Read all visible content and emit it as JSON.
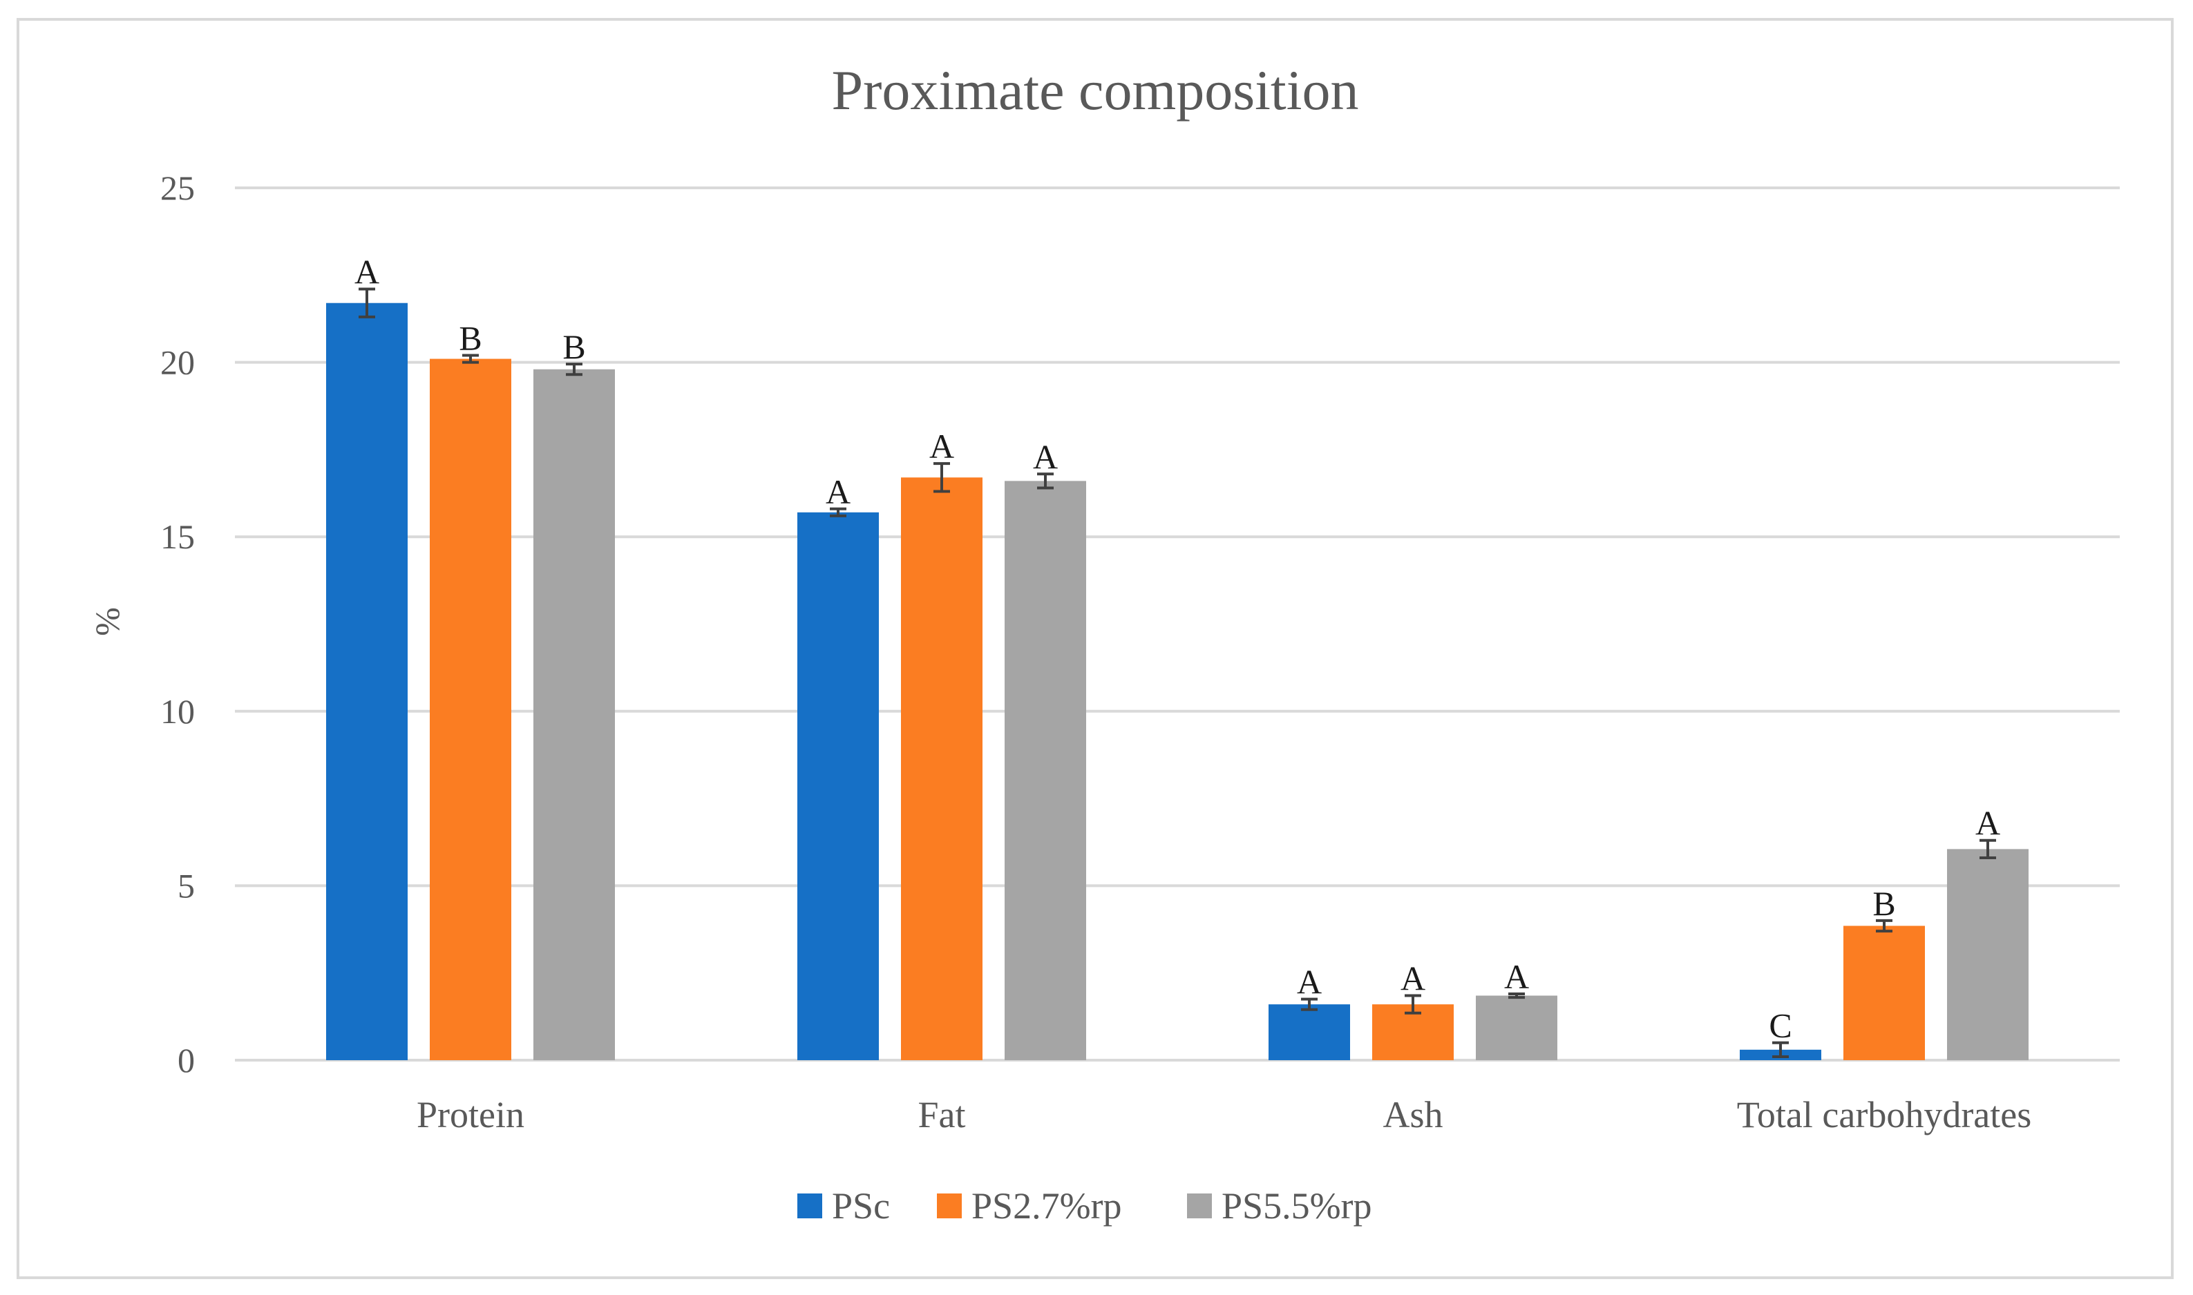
{
  "chart_data": {
    "type": "bar",
    "title": "Proximate composition",
    "xlabel": "",
    "ylabel": "%",
    "ylim": [
      0,
      25
    ],
    "yticks": [
      0,
      5,
      10,
      15,
      20,
      25
    ],
    "grid": true,
    "legend_position": "bottom",
    "categories": [
      "Protein",
      "Fat",
      "Ash",
      "Total carbohydrates"
    ],
    "series": [
      {
        "name": "PSc",
        "color": "#1670c6",
        "values": [
          21.7,
          15.7,
          1.6,
          0.3
        ],
        "errors": [
          0.4,
          0.1,
          0.15,
          0.2
        ],
        "letters": [
          "A",
          "A",
          "A",
          "C"
        ]
      },
      {
        "name": "PS2.7%rp",
        "color": "#fb7d22",
        "values": [
          20.1,
          16.7,
          1.6,
          3.85
        ],
        "errors": [
          0.1,
          0.4,
          0.25,
          0.15
        ],
        "letters": [
          "B",
          "A",
          "A",
          "B"
        ]
      },
      {
        "name": "PS5.5%rp",
        "color": "#a5a5a5",
        "values": [
          19.8,
          16.6,
          1.85,
          6.05
        ],
        "errors": [
          0.15,
          0.2,
          0.05,
          0.25
        ],
        "letters": [
          "B",
          "A",
          "A",
          "A"
        ]
      }
    ]
  }
}
